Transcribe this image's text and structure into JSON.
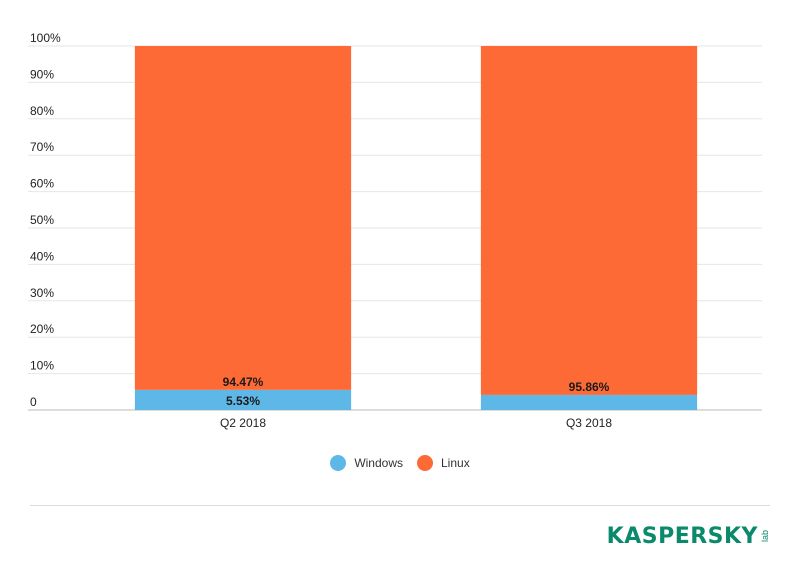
{
  "chart_data": {
    "type": "bar",
    "stacked": true,
    "categories": [
      "Q2 2018",
      "Q3 2018"
    ],
    "series": [
      {
        "name": "Windows",
        "values": [
          5.53,
          4.14
        ],
        "color": "#5db8e8",
        "labels": [
          "5.53%",
          ""
        ]
      },
      {
        "name": "Linux",
        "values": [
          94.47,
          95.86
        ],
        "color": "#fd6a36",
        "labels": [
          "94.47%",
          "95.86%"
        ]
      }
    ],
    "yticks": [
      "0",
      "10%",
      "20%",
      "30%",
      "40%",
      "50%",
      "60%",
      "70%",
      "80%",
      "90%",
      "100%"
    ],
    "ylim": [
      0,
      100
    ],
    "grid": true,
    "legend_position": "bottom"
  },
  "brand": {
    "name": "KASPERSKY",
    "suffix": "lab",
    "color": "#0a8a6a"
  }
}
